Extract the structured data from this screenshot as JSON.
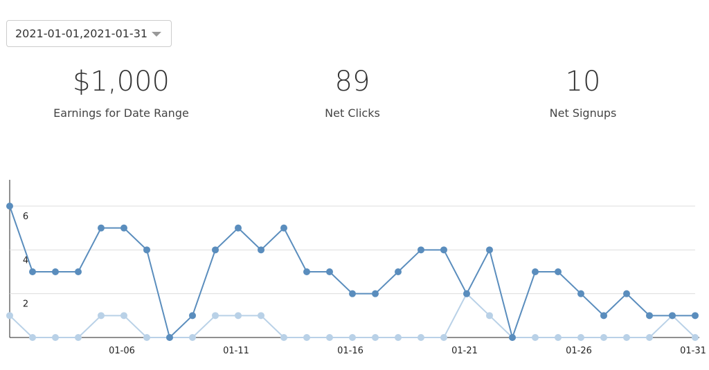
{
  "dropdown": {
    "value": "2021-01-01,2021-01-31"
  },
  "stats": [
    {
      "value": "$1,000",
      "label": "Earnings for Date Range"
    },
    {
      "value": "89",
      "label": "Net Clicks"
    },
    {
      "value": "10",
      "label": "Net Signups"
    }
  ],
  "chart_data": {
    "type": "line",
    "categories": [
      null,
      null,
      null,
      null,
      null,
      "01-06",
      null,
      null,
      null,
      null,
      "01-11",
      null,
      null,
      null,
      null,
      "01-16",
      null,
      null,
      null,
      null,
      "01-21",
      null,
      null,
      null,
      null,
      "01-26",
      null,
      null,
      null,
      null,
      "01-31"
    ],
    "series": [
      {
        "color": "#5a8dbd",
        "values": [
          6,
          3,
          3,
          3,
          5,
          5,
          4,
          0,
          1,
          4,
          5,
          4,
          5,
          3,
          3,
          2,
          2,
          3,
          4,
          4,
          2,
          4,
          0,
          3,
          3,
          2,
          1,
          2,
          1,
          1,
          1
        ]
      },
      {
        "color": "#b9d1e7",
        "values": [
          1,
          0,
          0,
          0,
          1,
          1,
          0,
          0,
          0,
          1,
          1,
          1,
          0,
          0,
          0,
          0,
          0,
          0,
          0,
          0,
          2,
          1,
          0,
          0,
          0,
          0,
          0,
          0,
          0,
          1,
          0
        ]
      }
    ],
    "ylim": [
      0,
      7.2
    ],
    "yticks": [
      2,
      4,
      6
    ],
    "grid": true
  }
}
